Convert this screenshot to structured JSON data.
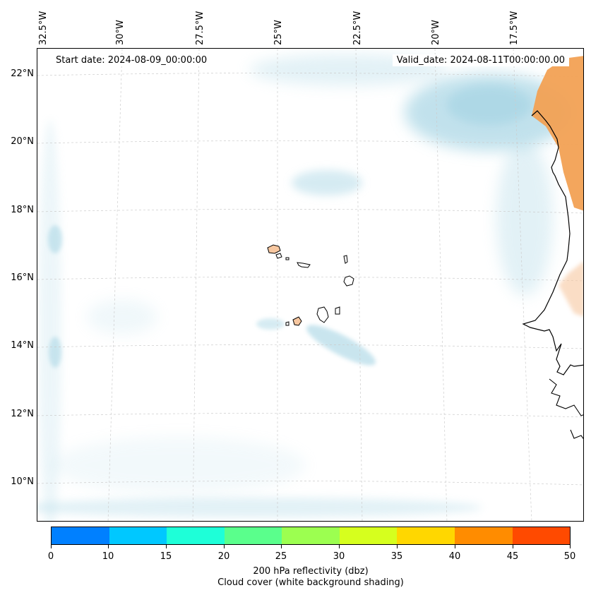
{
  "map": {
    "start_date": "Start date: 2024-08-09_00:00:00",
    "valid_date": "Valid_date: 2024-08-11T00:00:00.00",
    "lon_labels": [
      "32.5°W",
      "30°W",
      "27.5°W",
      "25°W",
      "22.5°W",
      "20°W",
      "17.5°W"
    ],
    "lat_labels": [
      "22°N",
      "20°N",
      "18°N",
      "16°N",
      "14°N",
      "12°N",
      "10°N"
    ],
    "colors": {
      "land_high": "#f2a154",
      "land_low": "#f7c7a0",
      "cloud": "#add8e6",
      "coastline": "#000000",
      "gridline": "#cccccc"
    }
  },
  "colorbar": {
    "ticks": [
      "0",
      "10",
      "15",
      "20",
      "25",
      "30",
      "35",
      "40",
      "45",
      "50"
    ],
    "colors": [
      "#0080ff",
      "#00c8ff",
      "#1effd8",
      "#5aff8c",
      "#9cff50",
      "#d6ff1e",
      "#ffd700",
      "#ff8c00",
      "#ff4a00"
    ],
    "label_line1": "200 hPa reflectivity (dbz)",
    "label_line2": "Cloud cover (white background shading)"
  }
}
